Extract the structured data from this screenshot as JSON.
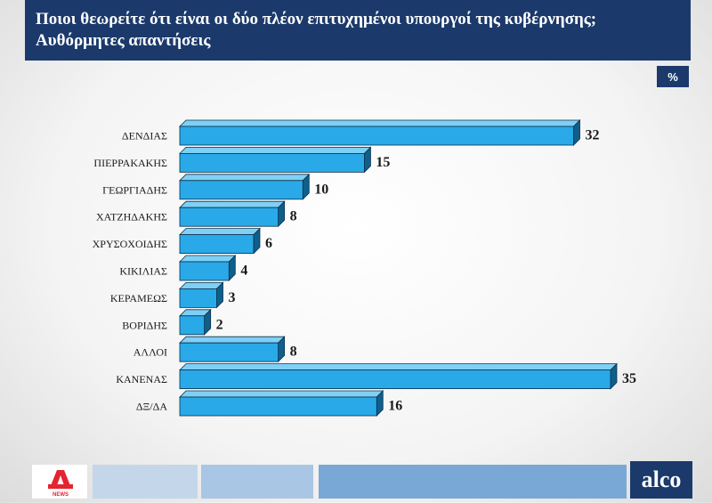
{
  "header": {
    "title_line1": "Ποιοι θεωρείτε ότι είναι οι δύο πλέον επιτυχημένοι υπουργοί της κυβέρνησης;",
    "title_line2": "Αυθόρμητες απαντήσεις"
  },
  "unit_badge": "%",
  "chart_data": {
    "type": "bar",
    "orientation": "horizontal",
    "categories": [
      "ΔΕΝΔΙΑΣ",
      "ΠΙΕΡΡΑΚΑΚΗΣ",
      "ΓΕΩΡΓΙΑΔΗΣ",
      "ΧΑΤΖΗΔΑΚΗΣ",
      "ΧΡΥΣΟΧΟΙΔΗΣ",
      "ΚΙΚΙΛΙΑΣ",
      "ΚΕΡΑΜΕΩΣ",
      "ΒΟΡΙΔΗΣ",
      "ΑΛΛΟΙ",
      "ΚΑΝΕΝΑΣ",
      "ΔΞ/ΔΑ"
    ],
    "values": [
      32,
      15,
      10,
      8,
      6,
      4,
      3,
      2,
      8,
      35,
      16
    ],
    "xlim": [
      0,
      35
    ],
    "grid": false,
    "legend": "none",
    "bar_color": "#29a9e8",
    "bar_dark": "#0f5f8c"
  },
  "footer": {
    "brand": "alco",
    "logo_icon": "alpha-news-logo",
    "logo_text": "NEWS",
    "brand_color": "#1b3a6b",
    "logo_color": "#e4242f"
  }
}
